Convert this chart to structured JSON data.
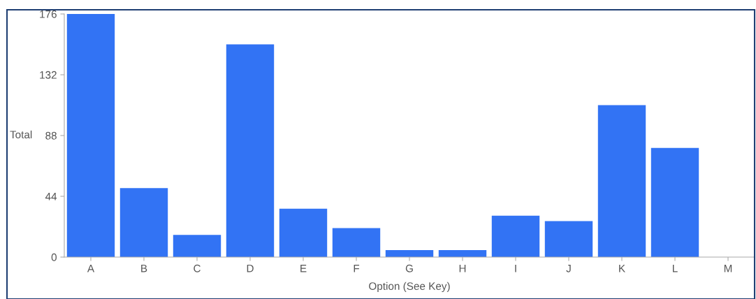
{
  "chart_data": {
    "type": "bar",
    "xlabel": "Option (See Key)",
    "ylabel": "Total",
    "categories": [
      "A",
      "B",
      "C",
      "D",
      "E",
      "F",
      "G",
      "H",
      "I",
      "J",
      "K",
      "L",
      "M"
    ],
    "values": [
      176,
      50,
      16,
      154,
      35,
      21,
      5,
      5,
      30,
      26,
      110,
      79,
      0
    ],
    "color": "#3273f4",
    "ylim": [
      0,
      176
    ],
    "yticks": [
      0,
      44,
      88,
      132,
      176
    ],
    "grid": false
  }
}
